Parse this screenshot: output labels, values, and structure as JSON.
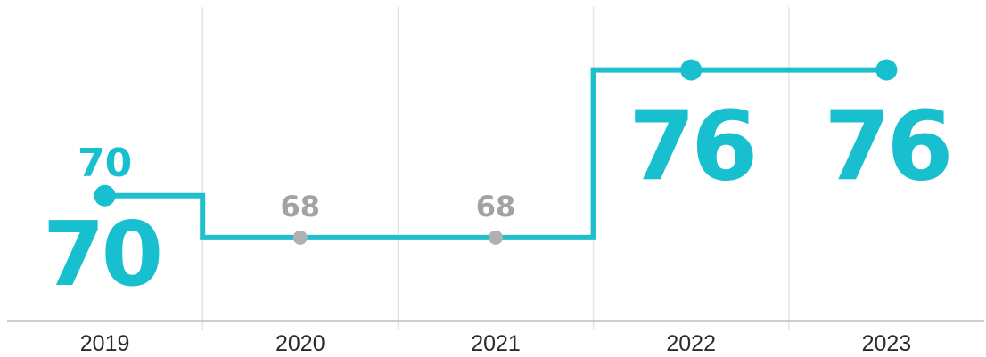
{
  "chart_data": {
    "type": "line",
    "step": "post",
    "x": [
      "2019",
      "2020",
      "2021",
      "2022",
      "2023"
    ],
    "series": [
      {
        "values": [
          70,
          68,
          68,
          76,
          76
        ]
      }
    ],
    "point_labels": [
      "70",
      "68",
      "68",
      "76",
      "76"
    ],
    "highlight_labels": [
      "70",
      "",
      "",
      "76",
      "76"
    ],
    "highlighted": [
      true,
      false,
      false,
      true,
      true
    ],
    "ylim": [
      64,
      79
    ],
    "grid": "vertical",
    "colors": {
      "line": "#20bfce",
      "highlight": "#18bfcf",
      "muted_point": "#b0b0b0",
      "muted_label": "#a3a3a3",
      "grid": "#e3e3e3",
      "axis": "#bdbdbd",
      "tick_text": "#2b2b2b"
    }
  }
}
